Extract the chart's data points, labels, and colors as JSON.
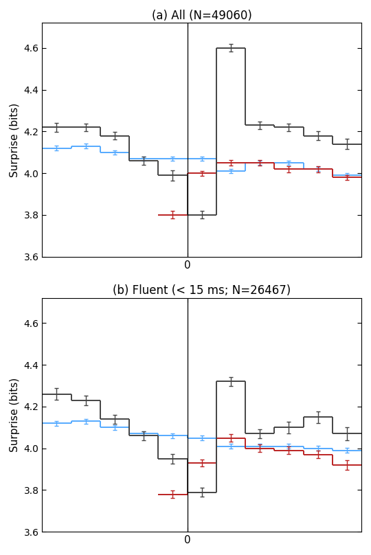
{
  "title_a": "(a) All (N=49060)",
  "title_b": "(b) Fluent (< 15 ms; N=26467)",
  "ylabel": "Surprise (bits)",
  "ylim": [
    3.6,
    4.72
  ],
  "yticks": [
    3.6,
    3.8,
    4.0,
    4.2,
    4.4,
    4.6
  ],
  "bin_edges": [
    -5,
    -4,
    -3,
    -2,
    -1,
    0,
    1,
    2,
    3,
    4,
    5,
    6
  ],
  "panel_a": {
    "black_y": [
      4.22,
      4.22,
      4.18,
      4.06,
      3.99,
      3.8,
      4.6,
      4.23,
      4.22,
      4.18,
      4.14
    ],
    "black_yerr": [
      0.022,
      0.018,
      0.018,
      0.02,
      0.025,
      0.018,
      0.018,
      0.018,
      0.018,
      0.02,
      0.025
    ],
    "blue_y": [
      4.12,
      4.13,
      4.1,
      4.07,
      4.07,
      4.07,
      4.01,
      4.05,
      4.05,
      4.02,
      3.99
    ],
    "blue_yerr": [
      0.012,
      0.012,
      0.01,
      0.01,
      0.01,
      0.01,
      0.01,
      0.01,
      0.01,
      0.01,
      0.01
    ],
    "red_y": [
      null,
      null,
      null,
      null,
      3.8,
      4.0,
      4.05,
      4.05,
      4.02,
      4.02,
      3.98
    ],
    "red_yerr": [
      null,
      null,
      null,
      null,
      0.018,
      0.012,
      0.012,
      0.012,
      0.015,
      0.015,
      0.012
    ]
  },
  "panel_b": {
    "black_y": [
      4.26,
      4.23,
      4.14,
      4.06,
      3.95,
      3.79,
      4.32,
      4.07,
      4.1,
      4.15,
      4.07
    ],
    "black_yerr": [
      0.028,
      0.022,
      0.022,
      0.022,
      0.022,
      0.022,
      0.022,
      0.022,
      0.028,
      0.028,
      0.03
    ],
    "blue_y": [
      4.12,
      4.13,
      4.1,
      4.07,
      4.06,
      4.05,
      4.01,
      4.01,
      4.01,
      4.0,
      3.99
    ],
    "blue_yerr": [
      0.012,
      0.012,
      0.012,
      0.01,
      0.01,
      0.01,
      0.012,
      0.012,
      0.012,
      0.012,
      0.012
    ],
    "red_y": [
      null,
      null,
      null,
      null,
      3.78,
      3.93,
      4.05,
      4.0,
      3.99,
      3.97,
      3.92
    ],
    "red_yerr": [
      null,
      null,
      null,
      null,
      0.018,
      0.018,
      0.018,
      0.018,
      0.018,
      0.018,
      0.022
    ]
  },
  "black_color": "#444444",
  "blue_color": "#55aaff",
  "red_color": "#bb2222",
  "lw": 1.4,
  "capsize": 2,
  "elinewidth": 1.0
}
